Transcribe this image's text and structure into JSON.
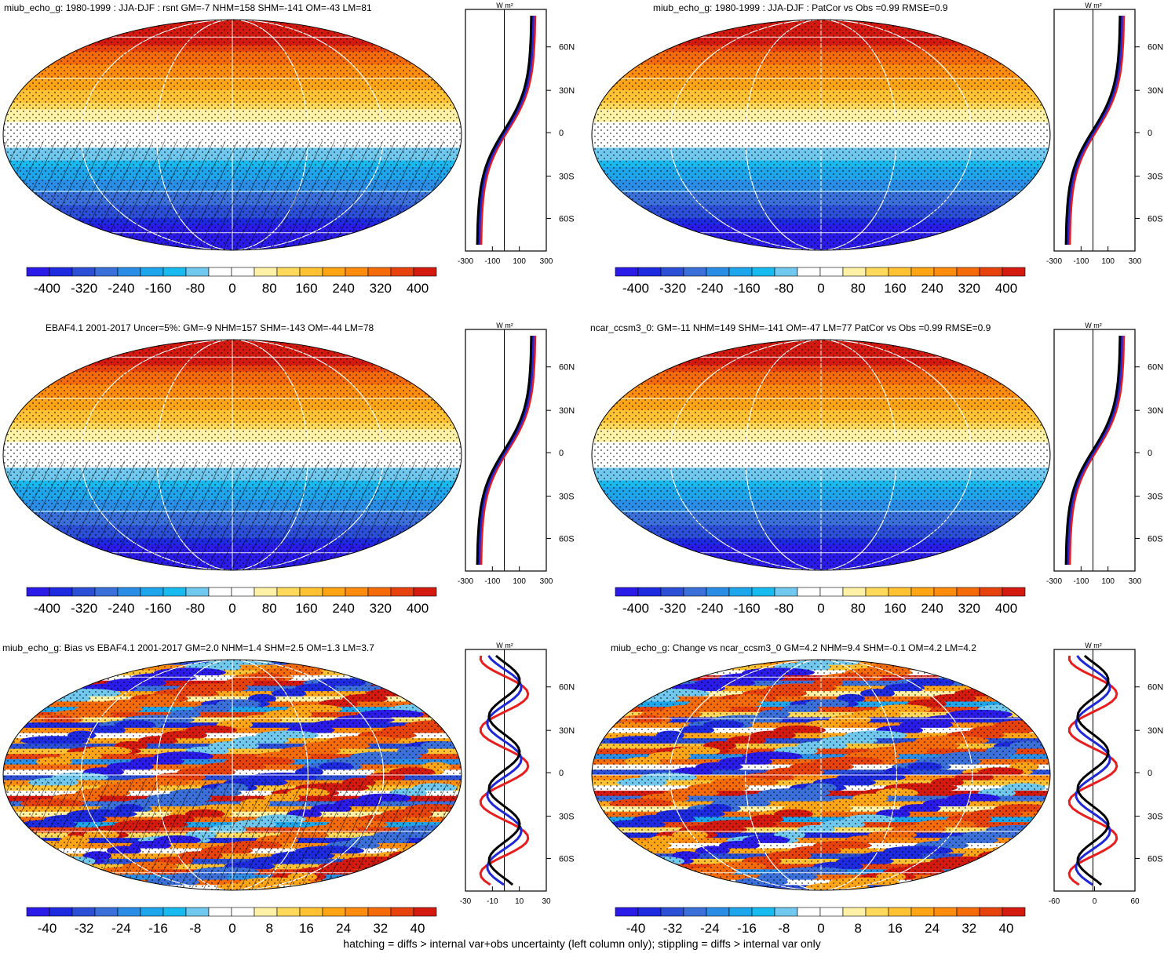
{
  "footer": "hatching = diffs > internal var+obs uncertainty (left column only); stippling = diffs > internal var only",
  "colors": {
    "mean_scale": [
      "#2b1be8",
      "#1e2ae0",
      "#2b4fd6",
      "#3b6fd9",
      "#2a8ee6",
      "#1ea6ec",
      "#18bbef",
      "#71c8ee",
      "#ffffff",
      "#ffffff",
      "#fff2a6",
      "#ffd95b",
      "#ffc233",
      "#ffa516",
      "#ff8c0c",
      "#f56a09",
      "#e8420c",
      "#d41a0f"
    ],
    "line_model": "#000000",
    "line_red": "#e81e1e",
    "line_blue": "#1f28d6"
  },
  "panels": [
    {
      "id": "p1",
      "title": "miub_echo_g: 1980-1999 : JJA-DJF : rsnt GM=-7 NHM=158 SHM=-141 OM=-43 LM=81",
      "kind": "mean",
      "hatch": true,
      "stipple": true,
      "cbar_labels": [
        "-400",
        "-320",
        "-240",
        "-160",
        "-80",
        "0",
        "80",
        "160",
        "240",
        "320",
        "400"
      ],
      "profile": {
        "xticks": [
          "-300",
          "-100",
          "100",
          "300"
        ],
        "xrange": [
          -300,
          300
        ],
        "units": "W m²",
        "lat_labels": [
          "60N",
          "30N",
          "0",
          "30S",
          "60S"
        ]
      }
    },
    {
      "id": "p2",
      "title": "miub_echo_g: 1980-1999 : JJA-DJF : PatCor vs Obs =0.99 RMSE=0.9",
      "kind": "mean",
      "hatch": false,
      "stipple": true,
      "cbar_labels": [
        "-400",
        "-320",
        "-240",
        "-160",
        "-80",
        "0",
        "80",
        "160",
        "240",
        "320",
        "400"
      ],
      "profile": {
        "xticks": [
          "-300",
          "-100",
          "100",
          "300"
        ],
        "xrange": [
          -300,
          300
        ],
        "units": "W m²",
        "lat_labels": [
          "60N",
          "30N",
          "0",
          "30S",
          "60S"
        ]
      }
    },
    {
      "id": "p3",
      "title": "EBAF4.1 2001-2017 Uncer=5%: GM=-9 NHM=157 SHM=-143 OM=-44 LM=78",
      "kind": "mean",
      "hatch": true,
      "stipple": true,
      "cbar_labels": [
        "-400",
        "-320",
        "-240",
        "-160",
        "-80",
        "0",
        "80",
        "160",
        "240",
        "320",
        "400"
      ],
      "profile": {
        "xticks": [
          "-300",
          "-100",
          "100",
          "300"
        ],
        "xrange": [
          -300,
          300
        ],
        "units": "W m²",
        "lat_labels": [
          "60N",
          "30N",
          "0",
          "30S",
          "60S"
        ]
      }
    },
    {
      "id": "p4",
      "title": "ncar_ccsm3_0: GM=-11 NHM=149 SHM=-141 OM=-47 LM=77 PatCor vs Obs =0.99 RMSE=0.9",
      "kind": "mean",
      "hatch": false,
      "stipple": true,
      "cbar_labels": [
        "-400",
        "-320",
        "-240",
        "-160",
        "-80",
        "0",
        "80",
        "160",
        "240",
        "320",
        "400"
      ],
      "profile": {
        "xticks": [
          "-300",
          "-100",
          "100",
          "300"
        ],
        "xrange": [
          -300,
          300
        ],
        "units": "W m²",
        "lat_labels": [
          "60N",
          "30N",
          "0",
          "30S",
          "60S"
        ]
      }
    },
    {
      "id": "p5",
      "title": "miub_echo_g: Bias vs EBAF4.1 2001-2017 GM=2.0 NHM=1.4 SHM=2.5 OM=1.3 LM=3.7",
      "kind": "diff",
      "hatch": true,
      "stipple": true,
      "cbar_labels": [
        "-40",
        "-32",
        "-24",
        "-16",
        "-8",
        "0",
        "8",
        "16",
        "24",
        "32",
        "40"
      ],
      "profile": {
        "xticks": [
          "-30",
          "-10",
          "10",
          "30"
        ],
        "xrange": [
          -30,
          30
        ],
        "units": "W m²",
        "lat_labels": [
          "60N",
          "30N",
          "0",
          "30S",
          "60S"
        ]
      }
    },
    {
      "id": "p6",
      "title": "miub_echo_g: Change vs ncar_ccsm3_0 GM=4.2 NHM=9.4 SHM=-0.1 OM=4.2 LM=4.2",
      "kind": "diff",
      "hatch": false,
      "stipple": true,
      "cbar_labels": [
        "-40",
        "-32",
        "-24",
        "-16",
        "-8",
        "0",
        "8",
        "16",
        "24",
        "32",
        "40"
      ],
      "profile": {
        "xticks": [
          "-60",
          "0",
          "60"
        ],
        "xrange": [
          -90,
          90
        ],
        "units": "W m²",
        "lat_labels": [
          "60N",
          "30N",
          "0",
          "30S",
          "60S"
        ]
      }
    }
  ]
}
